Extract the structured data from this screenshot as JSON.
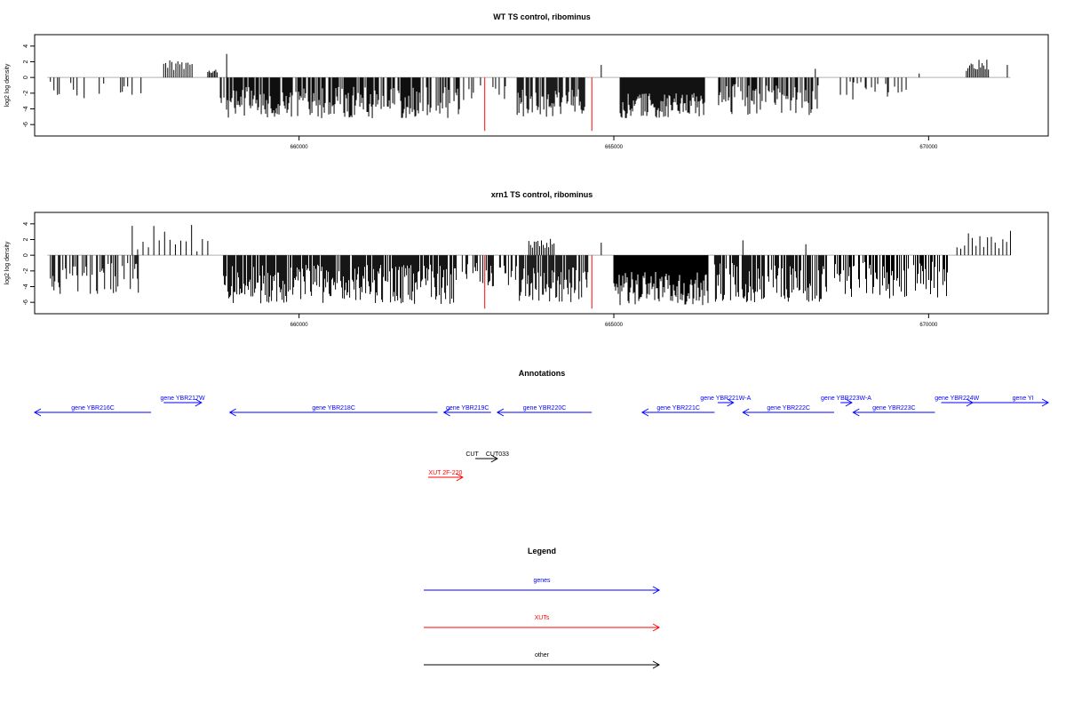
{
  "chart_data": [
    {
      "type": "bar",
      "title": "WT TS control, ribominus",
      "ylabel": "log2 log density",
      "xlim": [
        655800,
        671900
      ],
      "ylim": [
        -7,
        5
      ],
      "y_ticks": [
        -6,
        -4,
        -2,
        0,
        2,
        4
      ],
      "x_ticks": [
        660000,
        665000,
        670000
      ],
      "x_tick_labels": [
        "660000",
        "665000",
        "670000"
      ],
      "baseline_range": [
        656000,
        671300
      ],
      "bar_color": "#000000",
      "highlight_color": "#ff0000",
      "highlights": [
        {
          "x": 662950,
          "y": -6.8
        },
        {
          "x": 664650,
          "y": -6.8
        }
      ],
      "pos_clusters": [
        {
          "from": 657850,
          "to": 658300,
          "y_min": 0.5,
          "y_max": 2.6
        },
        {
          "from": 658550,
          "to": 658700,
          "y_min": 0.5,
          "y_max": 1.0
        },
        {
          "from": 658850,
          "to": 658850,
          "y_min": 3.0,
          "y_max": 3.0
        },
        {
          "from": 664800,
          "to": 664800,
          "y_min": 1.6,
          "y_max": 1.6
        },
        {
          "from": 668200,
          "to": 668200,
          "y_min": 1.1,
          "y_max": 1.1
        },
        {
          "from": 669850,
          "to": 669850,
          "y_min": 0.5,
          "y_max": 0.5
        },
        {
          "from": 670600,
          "to": 670950,
          "y_min": 0.8,
          "y_max": 2.3
        },
        {
          "from": 671250,
          "to": 671250,
          "y_min": 1.6,
          "y_max": 1.6
        }
      ],
      "neg_clusters": [
        {
          "from": 656050,
          "to": 657500,
          "depth_min": 0.5,
          "depth_max": 2.8,
          "density": 0.18
        },
        {
          "from": 658750,
          "to": 662550,
          "depth_min": 1.2,
          "depth_max": 5.2,
          "density": 0.75
        },
        {
          "from": 662600,
          "to": 663300,
          "depth_min": 0.8,
          "depth_max": 3.2,
          "density": 0.3
        },
        {
          "from": 663450,
          "to": 664550,
          "depth_min": 1.5,
          "depth_max": 5.0,
          "density": 0.7
        },
        {
          "from": 665100,
          "to": 666450,
          "depth_min": 2.0,
          "depth_max": 5.2,
          "density": 1.0
        },
        {
          "from": 666650,
          "to": 668300,
          "depth_min": 0.8,
          "depth_max": 4.8,
          "density": 0.5
        },
        {
          "from": 668500,
          "to": 669650,
          "depth_min": 0.5,
          "depth_max": 2.8,
          "density": 0.25
        }
      ]
    },
    {
      "type": "bar",
      "title": "xrn1 TS control, ribominus",
      "ylabel": "log2 log density",
      "xlim": [
        655800,
        671900
      ],
      "ylim": [
        -7,
        5
      ],
      "y_ticks": [
        -6,
        -4,
        -2,
        0,
        2,
        4
      ],
      "x_ticks": [
        660000,
        665000,
        670000
      ],
      "x_tick_labels": [
        "660000",
        "665000",
        "670000"
      ],
      "baseline_range": [
        656000,
        671300
      ],
      "bar_color": "#000000",
      "highlight_color": "#ff0000",
      "highlights": [
        {
          "x": 662950,
          "y": -6.8
        },
        {
          "x": 664650,
          "y": -6.8
        }
      ],
      "pos_clusters": [
        {
          "from": 657350,
          "to": 658550,
          "y_min": 0.4,
          "y_max": 4.6
        },
        {
          "from": 663650,
          "to": 664050,
          "y_min": 0.8,
          "y_max": 2.4
        },
        {
          "from": 664800,
          "to": 664800,
          "y_min": 1.6,
          "y_max": 1.6
        },
        {
          "from": 667050,
          "to": 667050,
          "y_min": 1.9,
          "y_max": 1.9
        },
        {
          "from": 668050,
          "to": 668050,
          "y_min": 1.4,
          "y_max": 1.4
        },
        {
          "from": 670450,
          "to": 671300,
          "y_min": 0.5,
          "y_max": 3.5
        }
      ],
      "neg_clusters": [
        {
          "from": 656050,
          "to": 657450,
          "depth_min": 1.0,
          "depth_max": 5.0,
          "density": 0.5
        },
        {
          "from": 658800,
          "to": 662500,
          "depth_min": 1.2,
          "depth_max": 6.2,
          "density": 0.85
        },
        {
          "from": 662550,
          "to": 663500,
          "depth_min": 0.8,
          "depth_max": 4.0,
          "density": 0.5
        },
        {
          "from": 663500,
          "to": 664600,
          "depth_min": 1.5,
          "depth_max": 6.0,
          "density": 0.8
        },
        {
          "from": 665000,
          "to": 666500,
          "depth_min": 2.0,
          "depth_max": 6.5,
          "density": 1.0
        },
        {
          "from": 666600,
          "to": 668400,
          "depth_min": 1.0,
          "depth_max": 6.0,
          "density": 0.75
        },
        {
          "from": 668450,
          "to": 670300,
          "depth_min": 0.8,
          "depth_max": 5.5,
          "density": 0.55
        }
      ]
    }
  ],
  "annotations": {
    "title": "Annotations",
    "features": [
      {
        "label": "gene YBR216C",
        "color": "#0000ff",
        "strand": "-",
        "from": 655800,
        "to": 657650,
        "row": 0
      },
      {
        "label": "gene YBR217W",
        "color": "#0000ff",
        "strand": "+",
        "from": 657850,
        "to": 658450,
        "row": 1
      },
      {
        "label": "gene YBR218C",
        "color": "#0000ff",
        "strand": "-",
        "from": 658900,
        "to": 662200,
        "row": 0
      },
      {
        "label": "gene YBR219C",
        "color": "#0000ff",
        "strand": "-",
        "from": 662300,
        "to": 663050,
        "row": 0
      },
      {
        "label": "gene YBR220C",
        "color": "#0000ff",
        "strand": "-",
        "from": 663150,
        "to": 664650,
        "row": 0
      },
      {
        "label": "gene YBR221C",
        "color": "#0000ff",
        "strand": "-",
        "from": 665450,
        "to": 666600,
        "row": 0
      },
      {
        "label": "gene YBR221W-A",
        "color": "#0000ff",
        "strand": "+",
        "from": 666650,
        "to": 666900,
        "row": 1
      },
      {
        "label": "gene YBR222C",
        "color": "#0000ff",
        "strand": "-",
        "from": 667050,
        "to": 668500,
        "row": 0
      },
      {
        "label": "gene YBR223W-A",
        "color": "#0000ff",
        "strand": "+",
        "from": 668600,
        "to": 668780,
        "row": 1
      },
      {
        "label": "gene YBR223C",
        "color": "#0000ff",
        "strand": "-",
        "from": 668800,
        "to": 670100,
        "row": 0
      },
      {
        "label": "gene YBR224W",
        "color": "#0000ff",
        "strand": "+",
        "from": 670200,
        "to": 670700,
        "row": 1
      },
      {
        "label": "gene YI",
        "color": "#0000ff",
        "strand": "+",
        "from": 670300,
        "to": 671900,
        "row": 1,
        "label_at": 671500
      },
      {
        "label": "CUT",
        "color": "#000000",
        "strand": "+",
        "from": 662800,
        "to": 663150,
        "row": 2,
        "label_at": 662750
      },
      {
        "label": "CUT033",
        "color": "#000000",
        "strand": "+",
        "from": 662800,
        "to": 663150,
        "row": 2,
        "label_at": 663150
      },
      {
        "label": "XUT 2F-220",
        "color": "#ff0000",
        "strand": "+",
        "from": 662050,
        "to": 662600,
        "row": 3
      }
    ]
  },
  "legend": {
    "title": "Legend",
    "items": [
      {
        "label": "genes",
        "color": "#0000ff"
      },
      {
        "label": "XUTs",
        "color": "#ff0000"
      },
      {
        "label": "other",
        "color": "#000000"
      }
    ]
  }
}
